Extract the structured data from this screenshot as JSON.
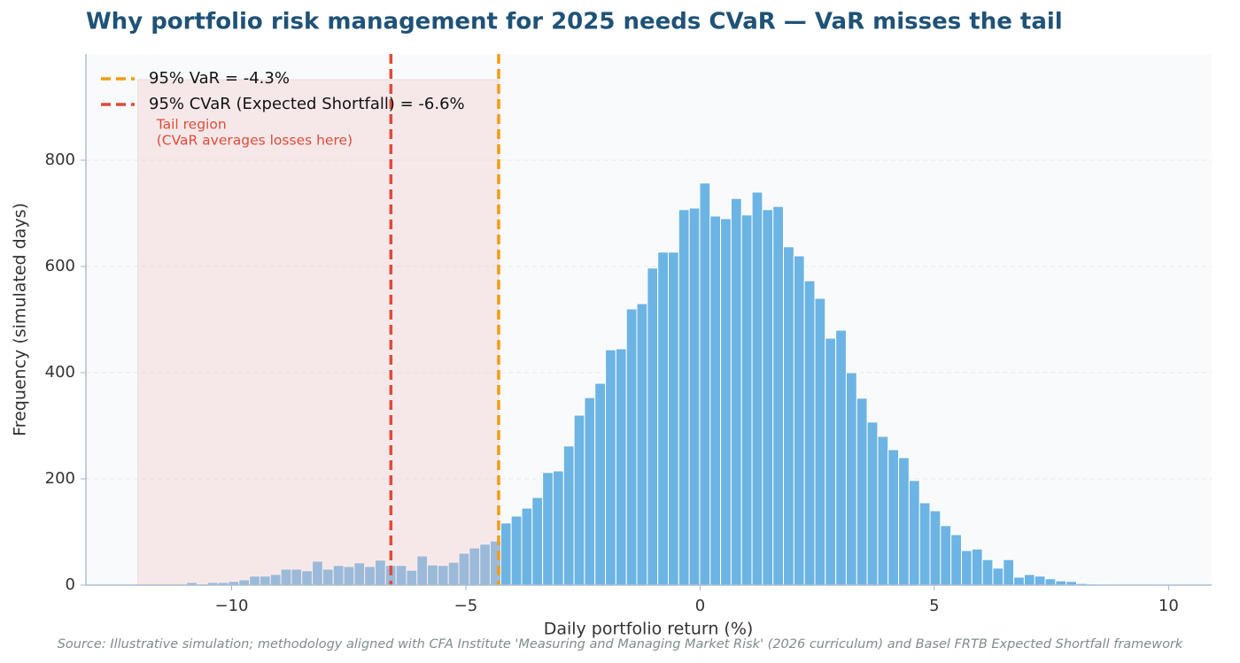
{
  "chart_data": {
    "type": "histogram",
    "title": "Why portfolio risk management for 2025 needs CVaR — VaR misses the tail",
    "xlabel": "Daily portfolio return (%)",
    "ylabel": "Frequency (simulated days)",
    "source": "Source: Illustrative simulation; methodology aligned with CFA Institute 'Measuring and Managing Market Risk' (2026 curriculum) and Basel FRTB Expected Shortfall framework",
    "color": "#6cb4e4",
    "bins": [
      -10.96,
      -10.737,
      -10.513,
      -10.29,
      -10.066,
      -9.843,
      -9.619,
      -9.396,
      -9.172,
      -8.949,
      -8.725,
      -8.502,
      -8.278,
      -8.055,
      -7.831,
      -7.608,
      -7.384,
      -7.161,
      -6.937,
      -6.714,
      -6.49,
      -6.267,
      -6.043,
      -5.82,
      -5.596,
      -5.373,
      -5.149,
      -4.926,
      -4.702,
      -4.479,
      -4.255,
      -4.032,
      -3.808,
      -3.585,
      -3.361,
      -3.138,
      -2.914,
      -2.691,
      -2.467,
      -2.244,
      -2.02,
      -1.797,
      -1.573,
      -1.35,
      -1.126,
      -0.903,
      -0.679,
      -0.456,
      -0.232,
      -0.009,
      0.215,
      0.438,
      0.662,
      0.885,
      1.109,
      1.332,
      1.556,
      1.779,
      2.003,
      2.226,
      2.45,
      2.673,
      2.897,
      3.12,
      3.344,
      3.567,
      3.791,
      4.014,
      4.238,
      4.461,
      4.685,
      4.908,
      5.132,
      5.355,
      5.579,
      5.802,
      6.026,
      6.249,
      6.473,
      6.696,
      6.92,
      7.143,
      7.367,
      7.59,
      7.814,
      8.037,
      8.261,
      8.484,
      8.708,
      8.931
    ],
    "values": [
      5,
      2,
      5,
      5,
      7,
      10,
      17,
      17,
      20,
      30,
      30,
      27,
      45,
      30,
      37,
      35,
      42,
      35,
      47,
      37,
      37,
      28,
      55,
      38,
      37,
      43,
      60,
      70,
      77,
      83,
      117,
      130,
      145,
      165,
      212,
      215,
      262,
      320,
      353,
      380,
      443,
      445,
      520,
      530,
      597,
      627,
      627,
      707,
      710,
      757,
      695,
      690,
      728,
      697,
      740,
      707,
      713,
      637,
      620,
      573,
      540,
      465,
      480,
      400,
      352,
      307,
      280,
      255,
      240,
      197,
      155,
      140,
      112,
      95,
      65,
      68,
      48,
      32,
      48,
      15,
      20,
      17,
      12,
      8,
      7,
      3,
      2,
      1,
      1
    ],
    "vlines": [
      {
        "name": "95% VaR = -4.3%",
        "value": -4.3,
        "color": "#f39c12"
      },
      {
        "name": "95% CVaR (Expected Shortfall) = -6.6%",
        "value": -6.6,
        "color": "#e04b3a"
      }
    ],
    "tail_region": {
      "label": [
        "Tail region",
        "(CVaR averages losses here)"
      ],
      "xlim": [
        -12,
        -4.3
      ],
      "color": "#f4c7c7"
    },
    "xlim": [
      -13.11,
      10.92
    ],
    "ylim": [
      0,
      1000
    ],
    "xticks": [
      {
        "value": -10,
        "label": "−10"
      },
      {
        "value": -5,
        "label": "−5"
      },
      0,
      5,
      10
    ],
    "yticks": [
      0,
      200,
      400,
      600,
      800
    ],
    "grid": true,
    "legend": "upper left"
  }
}
